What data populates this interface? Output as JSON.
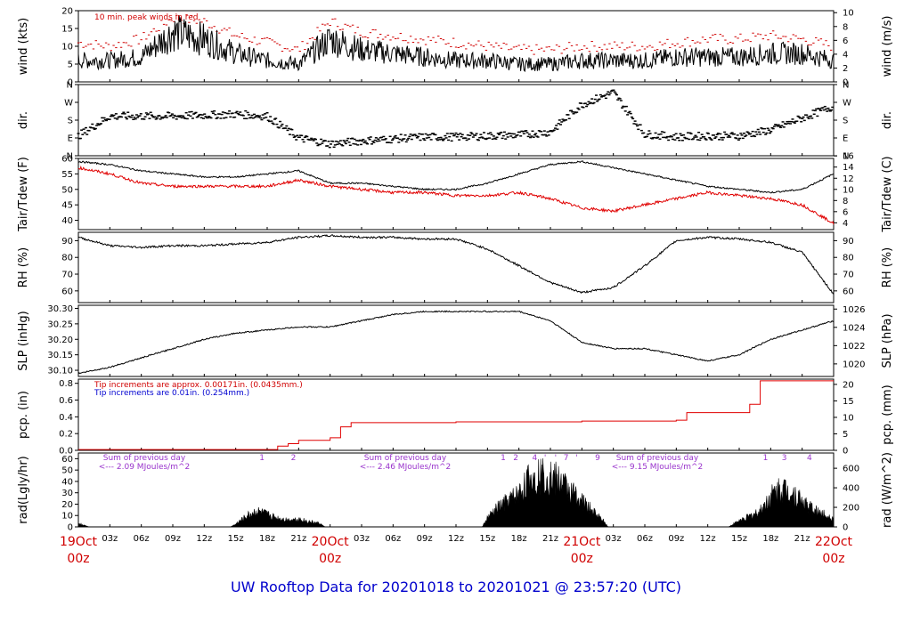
{
  "title": "UW Rooftop Data for 20201018  to  20201021 @ 23:57:20  (UTC)",
  "colors": {
    "primary": "#000000",
    "peak": "#d00000",
    "dew": "#e00000",
    "precip": "#e00000",
    "accent_blue": "#0000cc",
    "annot": "#9933cc",
    "day": "#d00000"
  },
  "x_axis": {
    "hour_labels": [
      "03z",
      "06z",
      "09z",
      "12z",
      "15z",
      "18z",
      "21z",
      "03z",
      "06z",
      "09z",
      "12z",
      "15z",
      "18z",
      "21z",
      "03z",
      "06z",
      "09z",
      "12z",
      "15z",
      "18z",
      "21z"
    ],
    "day_labels": [
      {
        "day": "19Oct",
        "time": "00z"
      },
      {
        "day": "20Oct",
        "time": "00z"
      },
      {
        "day": "21Oct",
        "time": "00z"
      },
      {
        "day": "22Oct",
        "time": "00z"
      }
    ]
  },
  "chart_data": [
    {
      "type": "line",
      "name": "wind",
      "ylabel_left": "wind (kts)",
      "ylabel_right": "wind (m/s)",
      "ylim": [
        0,
        20
      ],
      "left_ticks": [
        "0",
        "5",
        "10",
        "15",
        "20"
      ],
      "right_ticks": [
        "0",
        "2",
        "4",
        "6",
        "8",
        "10"
      ],
      "annotation": "10 min. peak winds in red",
      "x_hours": [
        0,
        3,
        6,
        9,
        12,
        15,
        18,
        21,
        24,
        27,
        30,
        33,
        36,
        39,
        42,
        45,
        48,
        51,
        54,
        57,
        60,
        63,
        66,
        69,
        72
      ],
      "series": [
        {
          "values": [
            6,
            6,
            7,
            14,
            12,
            8,
            6,
            5,
            12,
            9,
            8,
            7,
            6,
            6,
            5,
            5,
            6,
            6,
            6,
            7,
            7,
            7,
            8,
            8,
            6
          ]
        },
        {
          "values": [
            11,
            10,
            12,
            18,
            17,
            13,
            11,
            9,
            17,
            14,
            13,
            12,
            11,
            10,
            9,
            9,
            10,
            10,
            10,
            11,
            12,
            12,
            13,
            12,
            10
          ]
        }
      ]
    },
    {
      "type": "scatter",
      "name": "dir",
      "ylabel_left": "dir.",
      "ylabel_right": "dir.",
      "ylim": [
        0,
        360
      ],
      "left_ticks": [
        "N",
        "E",
        "S",
        "W",
        "N"
      ],
      "right_ticks": [
        "N",
        "E",
        "S",
        "W",
        "N"
      ],
      "x_hours": [
        0,
        3,
        6,
        9,
        12,
        15,
        18,
        21,
        24,
        27,
        30,
        33,
        36,
        39,
        42,
        45,
        48,
        51,
        54,
        57,
        60,
        63,
        66,
        69,
        72
      ],
      "values": [
        100,
        200,
        200,
        200,
        205,
        210,
        200,
        90,
        60,
        75,
        85,
        95,
        95,
        100,
        105,
        120,
        260,
        320,
        110,
        95,
        100,
        100,
        130,
        190,
        250
      ]
    },
    {
      "type": "line",
      "name": "temp",
      "ylabel_left": "Tair/Tdew (F)",
      "ylabel_right": "Tair/Tdew (C)",
      "ylim": [
        37,
        60
      ],
      "left_ticks": [
        "40",
        "45",
        "50",
        "55",
        "60"
      ],
      "right_ticks": [
        "4",
        "6",
        "8",
        "10",
        "12",
        "14",
        "16"
      ],
      "x_hours": [
        0,
        3,
        6,
        9,
        12,
        15,
        18,
        21,
        24,
        27,
        30,
        33,
        36,
        39,
        42,
        45,
        48,
        51,
        54,
        57,
        60,
        63,
        66,
        69,
        72
      ],
      "series": [
        {
          "values": [
            59,
            58,
            56,
            55,
            54,
            54,
            55,
            56,
            52,
            52,
            51,
            50,
            50,
            52,
            55,
            58,
            59,
            57,
            55,
            53,
            51,
            50,
            49,
            50,
            55
          ]
        },
        {
          "values": [
            57,
            55,
            52,
            51,
            51,
            51,
            51,
            53,
            51,
            50,
            49,
            49,
            48,
            48,
            49,
            47,
            44,
            43,
            45,
            47,
            49,
            48,
            47,
            45,
            39
          ]
        }
      ]
    },
    {
      "type": "line",
      "name": "rh",
      "ylabel_left": "RH (%)",
      "ylabel_right": "RH (%)",
      "ylim": [
        53,
        95
      ],
      "left_ticks": [
        "60",
        "70",
        "80",
        "90"
      ],
      "right_ticks": [
        "60",
        "70",
        "80",
        "90"
      ],
      "x_hours": [
        0,
        3,
        6,
        9,
        12,
        15,
        18,
        21,
        24,
        27,
        30,
        33,
        36,
        39,
        42,
        45,
        48,
        51,
        54,
        57,
        60,
        63,
        66,
        69,
        72
      ],
      "values": [
        92,
        87,
        86,
        87,
        87,
        88,
        89,
        92,
        93,
        92,
        92,
        91,
        91,
        85,
        75,
        65,
        59,
        62,
        75,
        90,
        92,
        91,
        89,
        83,
        58
      ]
    },
    {
      "type": "line",
      "name": "slp",
      "ylabel_left": "SLP (inHg)",
      "ylabel_right": "SLP (hPa)",
      "ylim": [
        30.08,
        30.31
      ],
      "left_ticks": [
        "30.10",
        "30.15",
        "30.20",
        "30.25",
        "30.30"
      ],
      "right_ticks": [
        "1020",
        "1022",
        "1024",
        "1026"
      ],
      "x_hours": [
        0,
        3,
        6,
        9,
        12,
        15,
        18,
        21,
        24,
        27,
        30,
        33,
        36,
        39,
        42,
        45,
        48,
        51,
        54,
        57,
        60,
        63,
        66,
        69,
        72
      ],
      "values": [
        30.09,
        30.11,
        30.14,
        30.17,
        30.2,
        30.22,
        30.23,
        30.24,
        30.24,
        30.26,
        30.28,
        30.29,
        30.29,
        30.29,
        30.29,
        30.26,
        30.19,
        30.17,
        30.17,
        30.15,
        30.13,
        30.15,
        30.2,
        30.23,
        30.26
      ]
    },
    {
      "type": "line",
      "name": "pcp",
      "ylabel_left": "pcp. (in)",
      "ylabel_right": "pcp. (mm)",
      "ylim": [
        0,
        0.85
      ],
      "left_ticks": [
        "0.0",
        "0.2",
        "0.4",
        "0.6",
        "0.8"
      ],
      "right_ticks": [
        "0",
        "5",
        "10",
        "15",
        "20"
      ],
      "annotation_red": "Tip increments are approx. 0.00171in. (0.0435mm.)",
      "annotation_blue": "Tip increments are 0.01in. (0.254mm.)",
      "x_hours": [
        0,
        18,
        19,
        20,
        21,
        24,
        25,
        26,
        36,
        48,
        57,
        58,
        64,
        65,
        72
      ],
      "values": [
        0.01,
        0.01,
        0.05,
        0.08,
        0.12,
        0.15,
        0.28,
        0.33,
        0.34,
        0.35,
        0.36,
        0.45,
        0.55,
        0.83,
        0.83
      ]
    },
    {
      "type": "area",
      "name": "rad",
      "ylabel_left": "rad(Lgly/hr)",
      "ylabel_right": "rad (W/m^2)",
      "ylim": [
        0,
        65
      ],
      "left_ticks": [
        "0",
        "10",
        "20",
        "30",
        "40",
        "50",
        "60"
      ],
      "right_ticks": [
        "0",
        "200",
        "400",
        "600"
      ],
      "day_sums": [
        {
          "line1": "Sum of previous day",
          "line2": "<--- 2.09 MJoules/m^2"
        },
        {
          "line1": "Sum of previous day",
          "line2": "<--- 2.46 MJoules/m^2"
        },
        {
          "line1": "Sum of previous day",
          "line2": "<--- 9.15 MJoules/m^2"
        }
      ],
      "markers": [
        {
          "x": 17.5,
          "label": "1"
        },
        {
          "x": 20.5,
          "label": "2"
        },
        {
          "x": 40.5,
          "label": "1"
        },
        {
          "x": 41.7,
          "label": "2"
        },
        {
          "x": 43.5,
          "label": "4"
        },
        {
          "x": 44.5,
          "label": "'"
        },
        {
          "x": 45.5,
          "label": "'"
        },
        {
          "x": 46.5,
          "label": "7"
        },
        {
          "x": 47.5,
          "label": "'"
        },
        {
          "x": 49.5,
          "label": "9"
        },
        {
          "x": 65.5,
          "label": "1"
        },
        {
          "x": 67.3,
          "label": "3"
        },
        {
          "x": 69.7,
          "label": "4"
        }
      ],
      "x_hours": [
        0,
        1,
        14.5,
        15,
        16,
        17,
        18,
        19,
        20,
        21,
        22,
        23,
        23.5,
        38.5,
        39,
        40,
        41,
        42,
        43,
        44,
        45,
        46,
        47,
        48,
        49,
        50,
        50.5,
        62,
        63,
        64,
        65,
        66,
        67,
        68,
        69,
        70,
        71,
        72
      ],
      "values": [
        4,
        0,
        0,
        3,
        12,
        18,
        14,
        10,
        8,
        9,
        6,
        4,
        0,
        0,
        10,
        22,
        30,
        38,
        55,
        60,
        58,
        52,
        40,
        30,
        18,
        8,
        0,
        0,
        7,
        12,
        18,
        35,
        45,
        40,
        30,
        20,
        15,
        10
      ]
    }
  ]
}
